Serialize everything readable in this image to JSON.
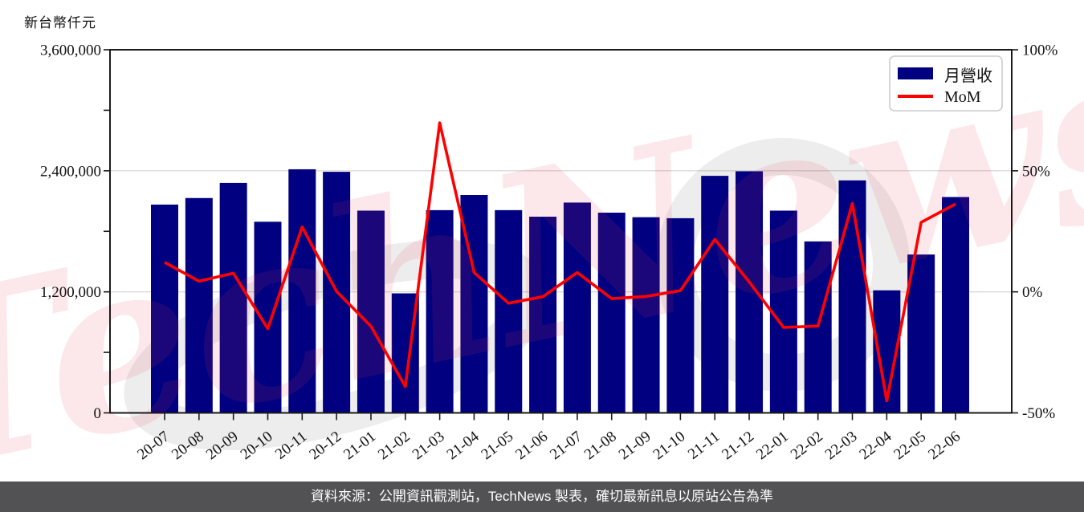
{
  "page": {
    "y_axis_unit_label": "新台幣仟元",
    "watermark_text": "TechNews",
    "footer": {
      "text": "資料來源：公開資訊觀測站，TechNews 製表，確切最新訊息以原站公告為準",
      "background": "#525254",
      "text_color": "#ffffff"
    }
  },
  "chart_data": {
    "type": "bar",
    "title": "",
    "ylabel": "新台幣仟元",
    "categories": [
      "20-07",
      "20-08",
      "20-09",
      "20-10",
      "20-11",
      "20-12",
      "21-01",
      "21-02",
      "21-03",
      "21-04",
      "21-05",
      "21-06",
      "21-07",
      "21-08",
      "21-09",
      "21-10",
      "21-11",
      "21-12",
      "22-01",
      "22-02",
      "22-03",
      "22-04",
      "22-05",
      "22-06"
    ],
    "series": [
      {
        "name": "月營收",
        "type": "bar",
        "axis": "left",
        "color": "#000080",
        "values": [
          2065000,
          2130000,
          2280000,
          1895000,
          2415000,
          2390000,
          2005000,
          1185000,
          2010000,
          2160000,
          2010000,
          1945000,
          2085000,
          1985000,
          1940000,
          1930000,
          2350000,
          2395000,
          2005000,
          1700000,
          2305000,
          1215000,
          1570000,
          2140000
        ]
      },
      {
        "name": "MoM",
        "type": "line",
        "axis": "right",
        "color": "#ff0000",
        "values": [
          12.2,
          4.4,
          7.7,
          -15.2,
          26.8,
          0.2,
          -14.2,
          -39.1,
          69.8,
          8.0,
          -4.7,
          -2.0,
          8.0,
          -2.8,
          -1.9,
          0.5,
          21.7,
          4.1,
          -14.7,
          -14.1,
          36.5,
          -45.0,
          28.7,
          36.3
        ]
      }
    ],
    "left_axis": {
      "min": 0,
      "max": 3600000,
      "tick_values": [
        0,
        1200000,
        2400000,
        3600000
      ],
      "tick_labels": [
        "0",
        "1,200,000",
        "2,400,000",
        "3,600,000"
      ],
      "minor_tick_step": 600000
    },
    "right_axis": {
      "min": -50,
      "max": 100,
      "tick_values": [
        -50,
        0,
        50,
        100
      ],
      "tick_labels": [
        "-50%",
        "0%",
        "50%",
        "100%"
      ]
    },
    "grid": {
      "on": true,
      "color": "#d9d9d9",
      "left_values": [
        1200000,
        2400000
      ]
    },
    "legend": {
      "position": "top-right",
      "items": [
        "月營收",
        "MoM"
      ]
    },
    "colors": {
      "bar": "#000080",
      "line": "#ff0000",
      "spine": "#1a1a1a",
      "watermark_pink": "rgba(230,60,80,0.12)",
      "watermark_gray": "rgba(0,0,0,0.07)"
    }
  }
}
